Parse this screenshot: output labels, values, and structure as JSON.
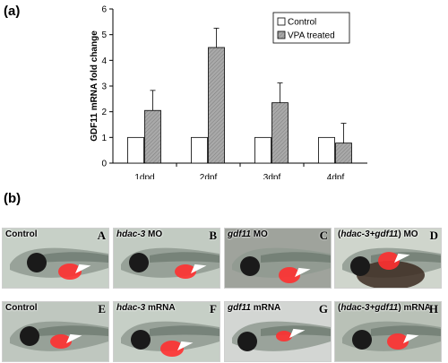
{
  "panel_a": {
    "label": "(a)"
  },
  "panel_b": {
    "label": "(b)"
  },
  "chart_data": {
    "type": "bar",
    "categories": [
      "1dpd",
      "2dpf",
      "3dpf",
      "4dpf"
    ],
    "series": [
      {
        "name": "Control",
        "values": [
          1,
          1,
          1,
          1
        ],
        "errors": [
          0,
          0,
          0,
          0
        ],
        "color": "#ffffff"
      },
      {
        "name": "VPA treated",
        "values": [
          2.05,
          4.5,
          2.35,
          0.78
        ],
        "errors": [
          0.78,
          0.75,
          0.77,
          0.77
        ],
        "color": "#a9a9a9"
      }
    ],
    "ylabel": "GDF11 mRNA fold change",
    "ylim": [
      0,
      6
    ],
    "yticks": [
      "0",
      "1",
      "2",
      "3",
      "4",
      "5",
      "6"
    ],
    "legend_position": "top-right",
    "grid": false
  },
  "tiles": [
    {
      "prefix": "Control",
      "gene": "",
      "suffix": "",
      "letter": "A",
      "bg": "#c7d0c7"
    },
    {
      "prefix": "",
      "gene": "hdac-3",
      "suffix": " MO",
      "letter": "B",
      "bg": "#c2cbc2"
    },
    {
      "prefix": "",
      "gene": "gdf11",
      "suffix": " MO",
      "letter": "C",
      "bg": "#9fa39c"
    },
    {
      "prefix": "(",
      "gene": "hdac-3+gdf11",
      "suffix": ") MO",
      "letter": "D",
      "bg": "#cfd5cc"
    },
    {
      "prefix": "Control",
      "gene": "",
      "suffix": "",
      "letter": "E",
      "bg": "#bfc7bf"
    },
    {
      "prefix": "",
      "gene": "hdac-3",
      "suffix": " mRNA",
      "letter": "F",
      "bg": "#c6cfc6"
    },
    {
      "prefix": "",
      "gene": "gdf11",
      "suffix": " mRNA",
      "letter": "G",
      "bg": "#d3d6d3"
    },
    {
      "prefix": "(",
      "gene": "hdac-3+gdf11",
      "suffix": ") mRNA",
      "letter": "H",
      "bg": "#b9c1b7"
    }
  ]
}
